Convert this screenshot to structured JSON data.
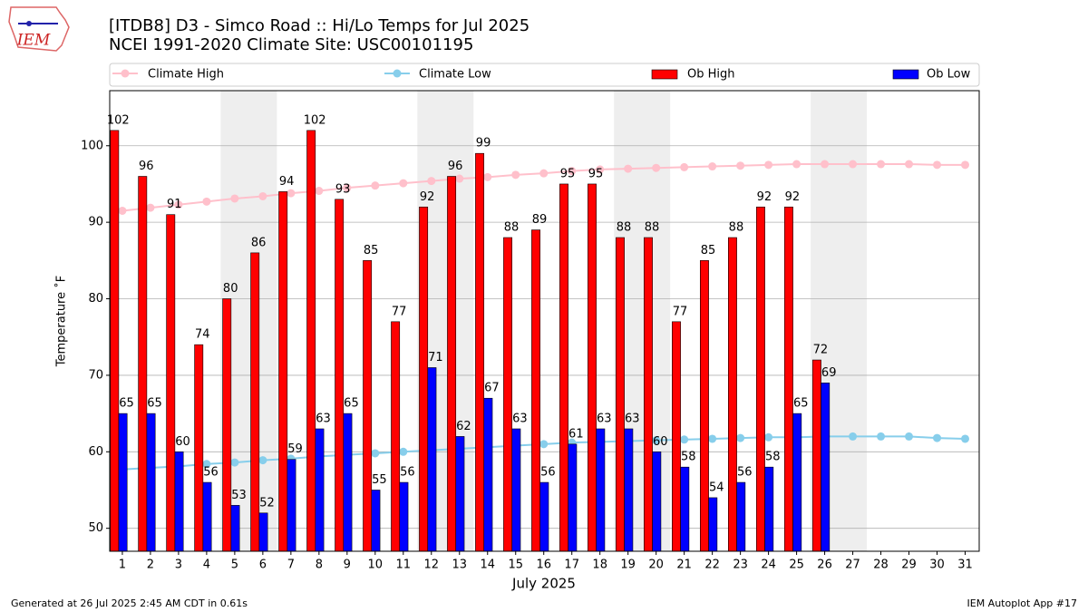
{
  "chart_data": {
    "type": "bar",
    "logo_text": "IEM",
    "title": "[ITDB8] D3 - Simco Road  :: Hi/Lo Temps for Jul 2025",
    "subtitle": "NCEI 1991-2020 Climate Site: USC00101195",
    "x_label": "July 2025",
    "y_label": "Temperature ˚F",
    "footer_left": "Generated at 26 Jul 2025 2:45 AM CDT in 0.61s",
    "footer_right": "IEM Autoplot App #17",
    "x": [
      1,
      2,
      3,
      4,
      5,
      6,
      7,
      8,
      9,
      10,
      11,
      12,
      13,
      14,
      15,
      16,
      17,
      18,
      19,
      20,
      21,
      22,
      23,
      24,
      25,
      26,
      27,
      28,
      29,
      30,
      31
    ],
    "xlim": [
      0.55,
      31.5
    ],
    "xticks": [
      1,
      2,
      3,
      4,
      5,
      6,
      7,
      8,
      9,
      10,
      11,
      12,
      13,
      14,
      15,
      16,
      17,
      18,
      19,
      20,
      21,
      22,
      23,
      24,
      25,
      26,
      27,
      28,
      29,
      30,
      31
    ],
    "ylim": [
      47,
      107.2
    ],
    "yticks": [
      50,
      60,
      70,
      80,
      90,
      100
    ],
    "grid": true,
    "shaded_spans": [
      [
        4.5,
        6.5
      ],
      [
        11.5,
        13.5
      ],
      [
        18.5,
        20.5
      ],
      [
        25.5,
        27.5
      ]
    ],
    "shade_color": "#eeeeee",
    "series": [
      {
        "name": "Climate High",
        "type": "line",
        "color": "#ffc0cb",
        "values": [
          91.5,
          91.9,
          92.3,
          92.7,
          93.1,
          93.4,
          93.8,
          94.1,
          94.5,
          94.8,
          95.1,
          95.4,
          95.7,
          95.9,
          96.2,
          96.4,
          96.7,
          96.9,
          97.0,
          97.1,
          97.2,
          97.3,
          97.4,
          97.5,
          97.6,
          97.6,
          97.6,
          97.6,
          97.6,
          97.5,
          97.5
        ]
      },
      {
        "name": "Climate Low",
        "type": "line",
        "color": "#87ceeb",
        "values": [
          57.7,
          57.9,
          58.1,
          58.4,
          58.6,
          58.9,
          59.1,
          59.4,
          59.6,
          59.8,
          60.0,
          60.2,
          60.4,
          60.6,
          60.8,
          61.0,
          61.2,
          61.3,
          61.4,
          61.5,
          61.6,
          61.7,
          61.8,
          61.9,
          61.9,
          62.0,
          62.0,
          62.0,
          62.0,
          61.8,
          61.7
        ]
      },
      {
        "name": "Ob High",
        "type": "bar",
        "color": "#ff0000",
        "values": [
          102,
          96,
          91,
          74,
          80,
          86,
          94,
          102,
          93,
          85,
          77,
          92,
          96,
          99,
          88,
          89,
          95,
          95,
          88,
          88,
          77,
          85,
          88,
          92,
          92,
          72,
          null,
          null,
          null,
          null,
          null
        ]
      },
      {
        "name": "Ob Low",
        "type": "bar",
        "color": "#0000ff",
        "values": [
          65,
          65,
          60,
          56,
          53,
          52,
          59,
          63,
          65,
          55,
          56,
          71,
          62,
          67,
          63,
          56,
          61,
          63,
          63,
          60,
          58,
          54,
          56,
          58,
          65,
          69,
          null,
          null,
          null,
          null,
          null
        ]
      }
    ]
  }
}
